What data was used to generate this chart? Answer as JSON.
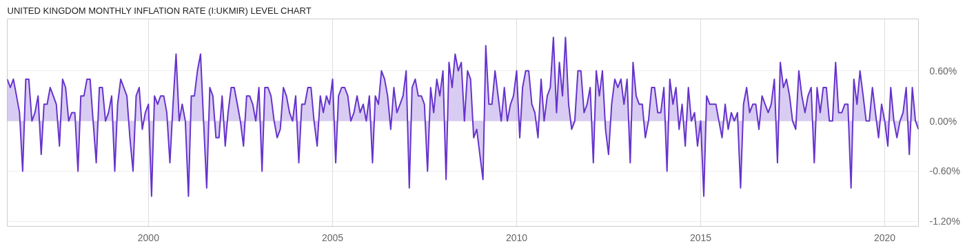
{
  "chart_data": {
    "type": "area",
    "title": "UNITED KINGDOM MONTHLY INFLATION RATE (I:UKMIR) LEVEL CHART",
    "x": [
      "1996-03",
      "1996-04",
      "1996-05",
      "1996-06",
      "1996-07",
      "1996-08",
      "1996-09",
      "1996-10",
      "1996-11",
      "1996-12",
      "1997-01",
      "1997-02",
      "1997-03",
      "1997-04",
      "1997-05",
      "1997-06",
      "1997-07",
      "1997-08",
      "1997-09",
      "1997-10",
      "1997-11",
      "1997-12",
      "1998-01",
      "1998-02",
      "1998-03",
      "1998-04",
      "1998-05",
      "1998-06",
      "1998-07",
      "1998-08",
      "1998-09",
      "1998-10",
      "1998-11",
      "1998-12",
      "1999-01",
      "1999-02",
      "1999-03",
      "1999-04",
      "1999-05",
      "1999-06",
      "1999-07",
      "1999-08",
      "1999-09",
      "1999-10",
      "1999-11",
      "1999-12",
      "2000-01",
      "2000-02",
      "2000-03",
      "2000-04",
      "2000-05",
      "2000-06",
      "2000-07",
      "2000-08",
      "2000-09",
      "2000-10",
      "2000-11",
      "2000-12",
      "2001-01",
      "2001-02",
      "2001-03",
      "2001-04",
      "2001-05",
      "2001-06",
      "2001-07",
      "2001-08",
      "2001-09",
      "2001-10",
      "2001-11",
      "2001-12",
      "2002-01",
      "2002-02",
      "2002-03",
      "2002-04",
      "2002-05",
      "2002-06",
      "2002-07",
      "2002-08",
      "2002-09",
      "2002-10",
      "2002-11",
      "2002-12",
      "2003-01",
      "2003-02",
      "2003-03",
      "2003-04",
      "2003-05",
      "2003-06",
      "2003-07",
      "2003-08",
      "2003-09",
      "2003-10",
      "2003-11",
      "2003-12",
      "2004-01",
      "2004-02",
      "2004-03",
      "2004-04",
      "2004-05",
      "2004-06",
      "2004-07",
      "2004-08",
      "2004-09",
      "2004-10",
      "2004-11",
      "2004-12",
      "2005-01",
      "2005-02",
      "2005-03",
      "2005-04",
      "2005-05",
      "2005-06",
      "2005-07",
      "2005-08",
      "2005-09",
      "2005-10",
      "2005-11",
      "2005-12",
      "2006-01",
      "2006-02",
      "2006-03",
      "2006-04",
      "2006-05",
      "2006-06",
      "2006-07",
      "2006-08",
      "2006-09",
      "2006-10",
      "2006-11",
      "2006-12",
      "2007-01",
      "2007-02",
      "2007-03",
      "2007-04",
      "2007-05",
      "2007-06",
      "2007-07",
      "2007-08",
      "2007-09",
      "2007-10",
      "2007-11",
      "2007-12",
      "2008-01",
      "2008-02",
      "2008-03",
      "2008-04",
      "2008-05",
      "2008-06",
      "2008-07",
      "2008-08",
      "2008-09",
      "2008-10",
      "2008-11",
      "2008-12",
      "2009-01",
      "2009-02",
      "2009-03",
      "2009-04",
      "2009-05",
      "2009-06",
      "2009-07",
      "2009-08",
      "2009-09",
      "2009-10",
      "2009-11",
      "2009-12",
      "2010-01",
      "2010-02",
      "2010-03",
      "2010-04",
      "2010-05",
      "2010-06",
      "2010-07",
      "2010-08",
      "2010-09",
      "2010-10",
      "2010-11",
      "2010-12",
      "2011-01",
      "2011-02",
      "2011-03",
      "2011-04",
      "2011-05",
      "2011-06",
      "2011-07",
      "2011-08",
      "2011-09",
      "2011-10",
      "2011-11",
      "2011-12",
      "2012-01",
      "2012-02",
      "2012-03",
      "2012-04",
      "2012-05",
      "2012-06",
      "2012-07",
      "2012-08",
      "2012-09",
      "2012-10",
      "2012-11",
      "2012-12",
      "2013-01",
      "2013-02",
      "2013-03",
      "2013-04",
      "2013-05",
      "2013-06",
      "2013-07",
      "2013-08",
      "2013-09",
      "2013-10",
      "2013-11",
      "2013-12",
      "2014-01",
      "2014-02",
      "2014-03",
      "2014-04",
      "2014-05",
      "2014-06",
      "2014-07",
      "2014-08",
      "2014-09",
      "2014-10",
      "2014-11",
      "2014-12",
      "2015-01",
      "2015-02",
      "2015-03",
      "2015-04",
      "2015-05",
      "2015-06",
      "2015-07",
      "2015-08",
      "2015-09",
      "2015-10",
      "2015-11",
      "2015-12",
      "2016-01",
      "2016-02",
      "2016-03",
      "2016-04",
      "2016-05",
      "2016-06",
      "2016-07",
      "2016-08",
      "2016-09",
      "2016-10",
      "2016-11",
      "2016-12",
      "2017-01",
      "2017-02",
      "2017-03",
      "2017-04",
      "2017-05",
      "2017-06",
      "2017-07",
      "2017-08",
      "2017-09",
      "2017-10",
      "2017-11",
      "2017-12",
      "2018-01",
      "2018-02",
      "2018-03",
      "2018-04",
      "2018-05",
      "2018-06",
      "2018-07",
      "2018-08",
      "2018-09",
      "2018-10",
      "2018-11",
      "2018-12",
      "2019-01",
      "2019-02",
      "2019-03",
      "2019-04",
      "2019-05",
      "2019-06",
      "2019-07",
      "2019-08",
      "2019-09",
      "2019-10",
      "2019-11",
      "2019-12",
      "2020-01",
      "2020-02",
      "2020-03",
      "2020-04",
      "2020-05",
      "2020-06",
      "2020-07",
      "2020-08",
      "2020-09",
      "2020-10",
      "2020-11",
      "2020-12"
    ],
    "series": [
      {
        "color": "#6633cc",
        "values": [
          0.5,
          0.4,
          0.5,
          0.3,
          0.1,
          -0.6,
          0.5,
          0.5,
          0.0,
          0.1,
          0.3,
          -0.4,
          0.2,
          0.2,
          0.4,
          0.3,
          0.2,
          -0.3,
          0.5,
          0.4,
          0.0,
          0.1,
          0.1,
          -0.6,
          0.3,
          0.3,
          0.5,
          0.5,
          0.0,
          -0.5,
          0.4,
          0.4,
          0.0,
          0.1,
          0.3,
          -0.6,
          0.2,
          0.5,
          0.4,
          0.3,
          -0.2,
          -0.6,
          0.3,
          0.4,
          -0.1,
          0.1,
          0.2,
          -0.9,
          0.3,
          0.2,
          0.3,
          0.3,
          0.1,
          -0.5,
          0.2,
          0.8,
          0.0,
          0.2,
          0.0,
          -0.9,
          0.3,
          0.3,
          0.6,
          0.8,
          0.0,
          -0.8,
          0.4,
          0.3,
          -0.2,
          -0.2,
          0.3,
          -0.3,
          0.1,
          0.4,
          0.4,
          0.2,
          0.0,
          -0.3,
          0.3,
          0.3,
          0.2,
          0.0,
          0.4,
          -0.6,
          0.4,
          0.4,
          0.3,
          0.0,
          -0.2,
          -0.1,
          0.4,
          0.3,
          0.1,
          0.0,
          0.3,
          -0.5,
          0.2,
          0.2,
          0.4,
          0.4,
          0.0,
          -0.3,
          0.3,
          0.1,
          0.3,
          0.2,
          0.5,
          -0.5,
          0.3,
          0.4,
          0.4,
          0.3,
          0.0,
          0.1,
          0.3,
          0.1,
          0.2,
          0.0,
          0.3,
          -0.5,
          0.3,
          0.2,
          0.6,
          0.5,
          0.3,
          -0.1,
          0.4,
          0.1,
          0.2,
          0.3,
          0.6,
          -0.8,
          0.4,
          0.5,
          0.3,
          0.3,
          0.2,
          -0.6,
          0.4,
          0.1,
          0.5,
          0.3,
          0.6,
          -0.7,
          0.7,
          0.4,
          0.8,
          0.6,
          0.7,
          0.0,
          0.6,
          0.5,
          -0.2,
          -0.1,
          -0.4,
          -0.7,
          0.9,
          0.2,
          0.2,
          0.6,
          0.3,
          0.0,
          0.4,
          0.0,
          0.2,
          0.3,
          0.6,
          -0.2,
          0.4,
          0.6,
          0.6,
          0.2,
          0.1,
          -0.2,
          0.5,
          0.0,
          0.3,
          0.4,
          1.0,
          0.1,
          0.7,
          0.3,
          1.0,
          0.2,
          -0.1,
          0.0,
          0.6,
          0.6,
          0.1,
          0.2,
          0.4,
          -0.5,
          0.6,
          0.3,
          0.6,
          -0.1,
          -0.4,
          0.2,
          0.5,
          0.4,
          0.5,
          0.2,
          0.5,
          -0.5,
          0.7,
          0.3,
          0.2,
          0.2,
          -0.2,
          0.0,
          0.4,
          0.4,
          0.1,
          0.1,
          0.4,
          -0.6,
          0.5,
          0.2,
          0.4,
          -0.1,
          0.2,
          -0.3,
          0.4,
          0.0,
          0.1,
          -0.3,
          0.0,
          -0.9,
          0.3,
          0.2,
          0.2,
          0.2,
          0.0,
          -0.2,
          0.2,
          -0.1,
          0.1,
          0.0,
          0.1,
          -0.8,
          0.2,
          0.4,
          0.1,
          0.2,
          0.2,
          -0.1,
          0.3,
          0.2,
          0.1,
          0.2,
          0.5,
          -0.5,
          0.7,
          0.4,
          0.5,
          0.3,
          0.0,
          -0.1,
          0.6,
          0.3,
          0.1,
          0.3,
          0.4,
          -0.5,
          0.4,
          0.1,
          0.4,
          0.4,
          0.0,
          0.0,
          0.7,
          0.1,
          0.1,
          0.2,
          0.2,
          -0.8,
          0.5,
          0.2,
          0.6,
          0.3,
          0.0,
          0.0,
          0.4,
          0.1,
          -0.2,
          0.2,
          0.0,
          -0.3,
          0.4,
          0.0,
          -0.2,
          0.0,
          0.1,
          0.4,
          -0.4,
          0.4,
          0.0,
          -0.1
        ]
      }
    ],
    "xlim": [
      "1996-03",
      "2020-12"
    ],
    "xticks": [
      "2000",
      "2005",
      "2010",
      "2015",
      "2020"
    ],
    "ylim": [
      -1.26,
      1.22
    ],
    "yticks": [
      {
        "value": 0.6,
        "label": "0.60%"
      },
      {
        "value": 0.0,
        "label": "0.00%"
      },
      {
        "value": -0.6,
        "label": "-0.60%"
      },
      {
        "value": -1.2,
        "label": "-1.20%"
      }
    ],
    "grid": true
  }
}
